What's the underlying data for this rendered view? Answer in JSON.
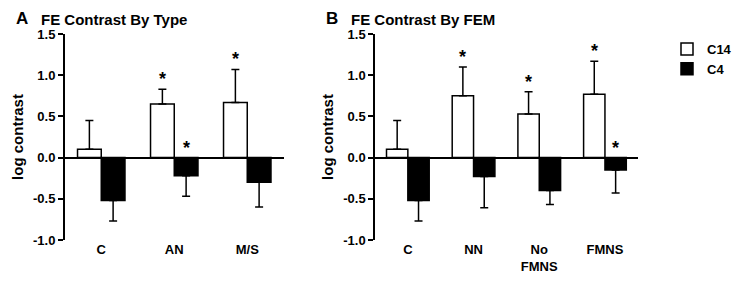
{
  "chart_data": [
    {
      "type": "bar",
      "panel": "A",
      "title": "FE Contrast By Type",
      "y_label": "log contrast",
      "categories": [
        "C",
        "AN",
        "M/S"
      ],
      "series": [
        {
          "name": "C14",
          "color": "#ffffff",
          "values": [
            0.1,
            0.65,
            0.67
          ],
          "errors": [
            0.35,
            0.18,
            0.4
          ]
        },
        {
          "name": "C4",
          "color": "#000000",
          "values": [
            -0.52,
            -0.22,
            -0.3
          ],
          "errors": [
            0.25,
            0.25,
            0.3
          ]
        }
      ],
      "annotations": [
        {
          "category": "AN",
          "series": "C14",
          "text": "*"
        },
        {
          "category": "AN",
          "series": "C4",
          "text": "*"
        },
        {
          "category": "M/S",
          "series": "C14",
          "text": "*"
        }
      ],
      "ylim": [
        -1,
        1.5
      ],
      "yticks": [
        {
          "value": -1,
          "label": "-1.0"
        },
        {
          "value": -0.5,
          "label": "-0.5"
        },
        {
          "value": 0,
          "label": "0.0"
        },
        {
          "value": 0.5,
          "label": "0.5"
        },
        {
          "value": 1,
          "label": "1.0"
        },
        {
          "value": 1.5,
          "label": "1.5"
        }
      ],
      "grid": false
    },
    {
      "type": "bar",
      "panel": "B",
      "title": "FE Contrast By FEM",
      "y_label": "log contrast",
      "categories": [
        "C",
        "NN",
        "No FMNS",
        "FMNS"
      ],
      "series": [
        {
          "name": "C14",
          "color": "#ffffff",
          "values": [
            0.1,
            0.75,
            0.53,
            0.77
          ],
          "errors": [
            0.35,
            0.35,
            0.27,
            0.4
          ]
        },
        {
          "name": "C4",
          "color": "#000000",
          "values": [
            -0.52,
            -0.23,
            -0.4,
            -0.15
          ],
          "errors": [
            0.25,
            0.38,
            0.17,
            0.28
          ]
        }
      ],
      "annotations": [
        {
          "category": "NN",
          "series": "C14",
          "text": "*"
        },
        {
          "category": "No FMNS",
          "series": "C14",
          "text": "*"
        },
        {
          "category": "FMNS",
          "series": "C14",
          "text": "*"
        },
        {
          "category": "FMNS",
          "series": "C4",
          "text": "*"
        }
      ],
      "ylim": [
        -1,
        1.5
      ],
      "yticks": [
        {
          "value": -1,
          "label": "-1.0"
        },
        {
          "value": -0.5,
          "label": "-0.5"
        },
        {
          "value": 0,
          "label": "0.0"
        },
        {
          "value": 0.5,
          "label": "0.5"
        },
        {
          "value": 1,
          "label": "1.0"
        },
        {
          "value": 1.5,
          "label": "1.5"
        }
      ],
      "grid": false,
      "legend": "right"
    }
  ]
}
